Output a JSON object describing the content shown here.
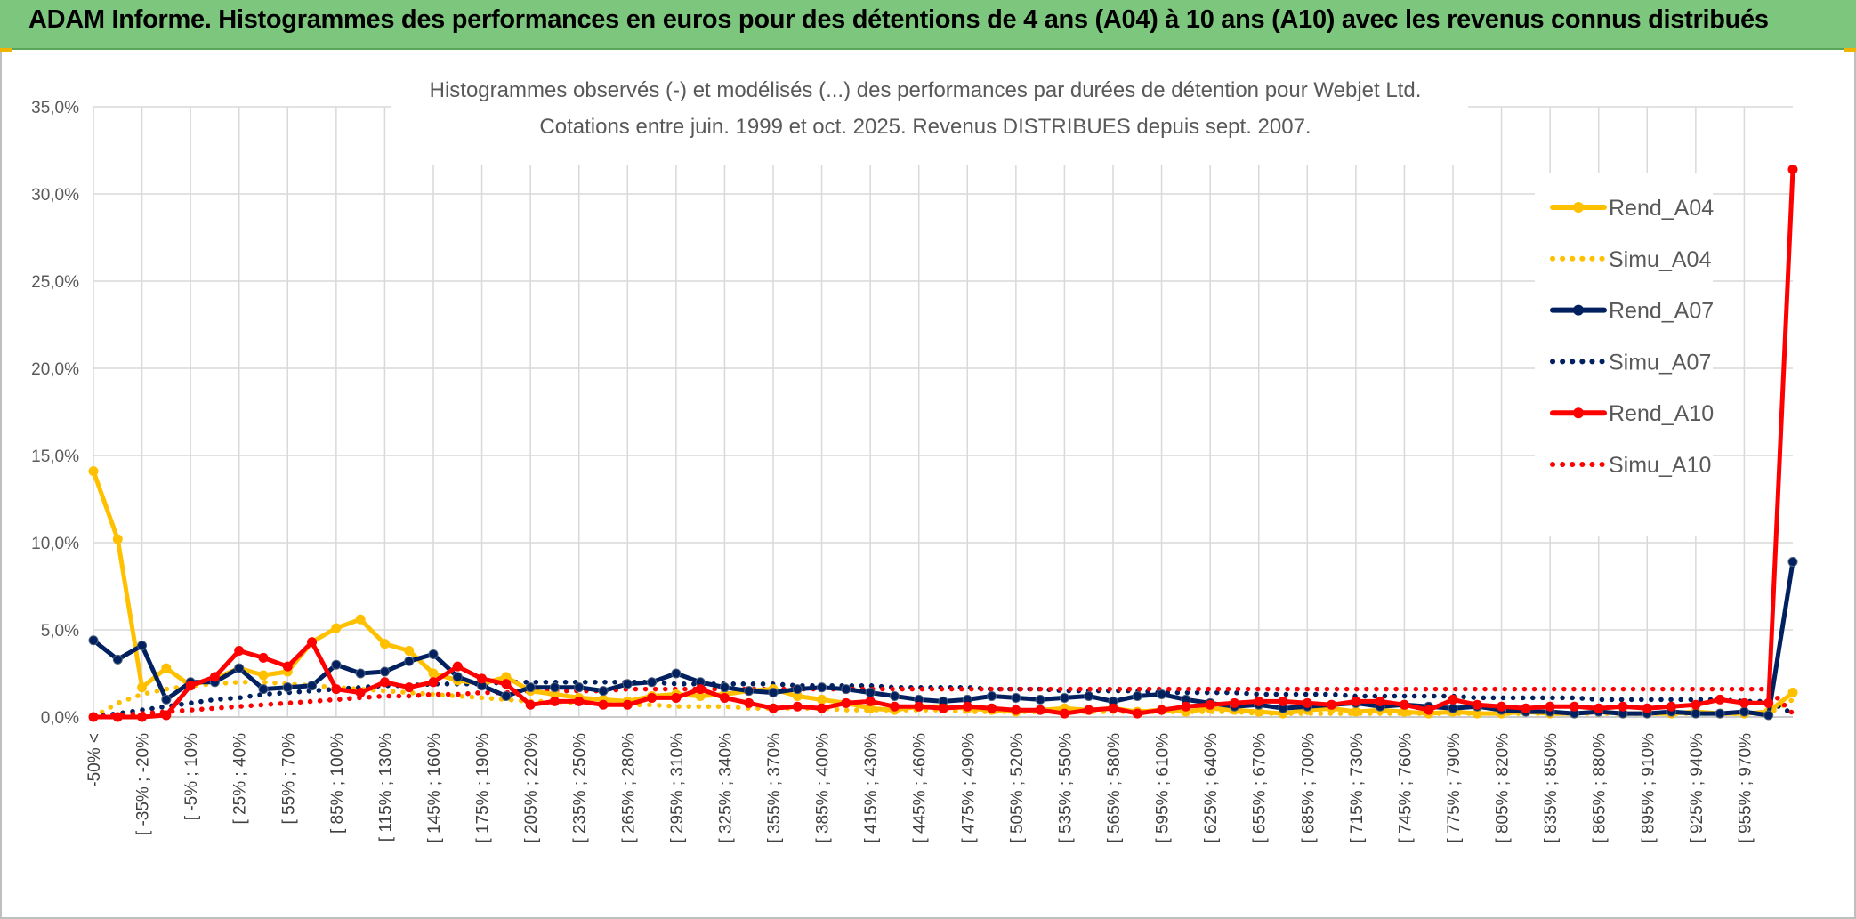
{
  "header": {
    "title": "ADAM Informe. Histogrammes des performances en euros pour des détentions de 4 ans (A04) à 10 ans (A10) avec les revenus connus distribués"
  },
  "colors": {
    "banner": "#7dc67d",
    "A04": "#ffc000",
    "A07": "#002060",
    "A10": "#ff0000",
    "grid": "#d9d9d9"
  },
  "chart_data": {
    "type": "line",
    "subtitle_line1": "Histogrammes observés (-) et modélisés (...) des performances par durées de détention pour Webjet Ltd.",
    "subtitle_line2": "Cotations entre juin. 1999 et oct. 2025. Revenus DISTRIBUES depuis sept. 2007.",
    "ylim": [
      0,
      35
    ],
    "y_ticks": [
      "0,0%",
      "5,0%",
      "10,0%",
      "15,0%",
      "20,0%",
      "25,0%",
      "30,0%",
      "35,0%"
    ],
    "x_labels": [
      "-50% <",
      "[ -35% ; -20%",
      "[ -5% ; 10%",
      "[ 25% ; 40%",
      "[ 55% ; 70%",
      "[ 85% ; 100%",
      "[ 115% ; 130%",
      "[ 145% ; 160%",
      "[ 175% ; 190%",
      "[ 205% ; 220%",
      "[ 235% ; 250%",
      "[ 265% ; 280%",
      "[ 295% ; 310%",
      "[ 325% ; 340%",
      "[ 355% ; 370%",
      "[ 385% ; 400%",
      "[ 415% ; 430%",
      "[ 445% ; 460%",
      "[ 475% ; 490%",
      "[ 505% ; 520%",
      "[ 535% ; 550%",
      "[ 565% ; 580%",
      "[ 595% ; 610%",
      "[ 625% ; 640%",
      "[ 655% ; 670%",
      "[ 685% ; 700%",
      "[ 715% ; 730%",
      "[ 745% ; 760%",
      "[ 775% ; 790%",
      "[ 805% ; 820%",
      "[ 835% ; 850%",
      "[ 865% ; 880%",
      "[ 895% ; 910%",
      "[ 925% ; 940%",
      "[ 955% ; 970%"
    ],
    "legend_position": "right",
    "grid": true,
    "series": [
      {
        "name": "Rend_A04",
        "style": "solid",
        "color": "#ffc000",
        "values": [
          14.1,
          10.2,
          1.7,
          2.8,
          1.8,
          2.2,
          2.8,
          2.4,
          2.6,
          4.3,
          5.1,
          5.6,
          4.2,
          3.8,
          2.5,
          2.1,
          1.9,
          2.3,
          1.5,
          1.3,
          1.1,
          1.0,
          0.9,
          1.2,
          1.3,
          1.2,
          1.3,
          1.5,
          1.6,
          1.2,
          1.0,
          0.8,
          0.5,
          0.4,
          0.6,
          0.6,
          0.5,
          0.4,
          0.3,
          0.4,
          0.5,
          0.4,
          0.5,
          0.3,
          0.4,
          0.3,
          0.5,
          0.4,
          0.3,
          0.2,
          0.4,
          0.5,
          0.3,
          0.4,
          0.3,
          0.2,
          0.3,
          0.2,
          0.2,
          0.3,
          0.2,
          0.2,
          0.3,
          0.2,
          0.2,
          0.2,
          0.3,
          0.2,
          0.2,
          0.3,
          1.4
        ]
      },
      {
        "name": "Simu_A04",
        "style": "dotted",
        "color": "#ffc000",
        "values": [
          0.0,
          0.8,
          1.3,
          1.6,
          1.8,
          1.9,
          2.0,
          2.0,
          1.9,
          1.8,
          1.7,
          1.6,
          1.5,
          1.4,
          1.3,
          1.2,
          1.1,
          1.0,
          0.9,
          0.9,
          0.8,
          0.8,
          0.7,
          0.7,
          0.6,
          0.6,
          0.6,
          0.5,
          0.5,
          0.5,
          0.5,
          0.4,
          0.4,
          0.4,
          0.4,
          0.4,
          0.3,
          0.3,
          0.3,
          0.3,
          0.3,
          0.3,
          0.3,
          0.3,
          0.3,
          0.3,
          0.3,
          0.3,
          0.2,
          0.2,
          0.2,
          0.2,
          0.2,
          0.2,
          0.2,
          0.2,
          0.2,
          0.2,
          0.2,
          0.2,
          0.2,
          0.2,
          0.2,
          0.2,
          0.2,
          0.2,
          0.2,
          0.2,
          0.2,
          0.2,
          1.0
        ]
      },
      {
        "name": "Rend_A07",
        "style": "solid",
        "color": "#002060",
        "values": [
          4.4,
          3.3,
          4.1,
          1.0,
          2.0,
          2.0,
          2.8,
          1.6,
          1.7,
          1.8,
          3.0,
          2.5,
          2.6,
          3.2,
          3.6,
          2.3,
          1.8,
          1.2,
          1.7,
          1.7,
          1.7,
          1.5,
          1.9,
          2.0,
          2.5,
          2.0,
          1.7,
          1.5,
          1.4,
          1.6,
          1.7,
          1.6,
          1.4,
          1.2,
          1.0,
          0.9,
          1.0,
          1.2,
          1.1,
          1.0,
          1.1,
          1.2,
          0.9,
          1.2,
          1.3,
          1.0,
          0.8,
          0.6,
          0.7,
          0.5,
          0.6,
          0.7,
          0.8,
          0.6,
          0.7,
          0.6,
          0.5,
          0.6,
          0.4,
          0.3,
          0.3,
          0.2,
          0.3,
          0.2,
          0.2,
          0.3,
          0.2,
          0.2,
          0.3,
          0.1,
          8.9
        ]
      },
      {
        "name": "Simu_A07",
        "style": "dotted",
        "color": "#002060",
        "values": [
          0.0,
          0.2,
          0.4,
          0.6,
          0.8,
          1.0,
          1.1,
          1.3,
          1.4,
          1.5,
          1.6,
          1.7,
          1.8,
          1.8,
          1.9,
          1.9,
          1.9,
          2.0,
          2.0,
          2.0,
          2.0,
          2.0,
          2.0,
          2.0,
          1.9,
          1.9,
          1.9,
          1.9,
          1.9,
          1.8,
          1.8,
          1.8,
          1.8,
          1.7,
          1.7,
          1.7,
          1.7,
          1.6,
          1.6,
          1.6,
          1.5,
          1.5,
          1.5,
          1.5,
          1.4,
          1.4,
          1.4,
          1.4,
          1.3,
          1.3,
          1.3,
          1.3,
          1.2,
          1.2,
          1.2,
          1.2,
          1.2,
          1.1,
          1.1,
          1.1,
          1.1,
          1.1,
          1.0,
          1.0,
          1.0,
          1.0,
          1.0,
          1.0,
          0.9,
          0.9,
          0.2
        ]
      },
      {
        "name": "Rend_A10",
        "style": "solid",
        "color": "#ff0000",
        "values": [
          0.0,
          0.0,
          0.0,
          0.1,
          1.8,
          2.3,
          3.8,
          3.4,
          2.9,
          4.3,
          1.6,
          1.4,
          2.0,
          1.7,
          2.0,
          2.9,
          2.2,
          1.9,
          0.7,
          0.9,
          0.9,
          0.7,
          0.7,
          1.1,
          1.1,
          1.6,
          1.1,
          0.8,
          0.5,
          0.6,
          0.5,
          0.8,
          0.9,
          0.6,
          0.6,
          0.5,
          0.6,
          0.5,
          0.4,
          0.4,
          0.2,
          0.4,
          0.5,
          0.2,
          0.4,
          0.6,
          0.7,
          0.8,
          0.9,
          0.9,
          0.8,
          0.7,
          0.9,
          0.9,
          0.7,
          0.4,
          1.0,
          0.7,
          0.6,
          0.5,
          0.6,
          0.6,
          0.5,
          0.6,
          0.5,
          0.6,
          0.7,
          1.0,
          0.8,
          0.8,
          31.4
        ]
      },
      {
        "name": "Simu_A10",
        "style": "dotted",
        "color": "#ff0000",
        "values": [
          0.0,
          0.1,
          0.2,
          0.3,
          0.4,
          0.5,
          0.6,
          0.7,
          0.8,
          0.9,
          1.0,
          1.1,
          1.2,
          1.2,
          1.3,
          1.3,
          1.4,
          1.4,
          1.5,
          1.5,
          1.5,
          1.5,
          1.6,
          1.6,
          1.6,
          1.6,
          1.6,
          1.6,
          1.6,
          1.6,
          1.6,
          1.6,
          1.6,
          1.6,
          1.6,
          1.6,
          1.6,
          1.6,
          1.6,
          1.6,
          1.6,
          1.6,
          1.6,
          1.6,
          1.6,
          1.6,
          1.6,
          1.6,
          1.6,
          1.6,
          1.6,
          1.6,
          1.6,
          1.6,
          1.6,
          1.6,
          1.6,
          1.6,
          1.6,
          1.6,
          1.6,
          1.6,
          1.6,
          1.6,
          1.6,
          1.6,
          1.6,
          1.6,
          1.6,
          1.6,
          0.2
        ]
      }
    ]
  }
}
